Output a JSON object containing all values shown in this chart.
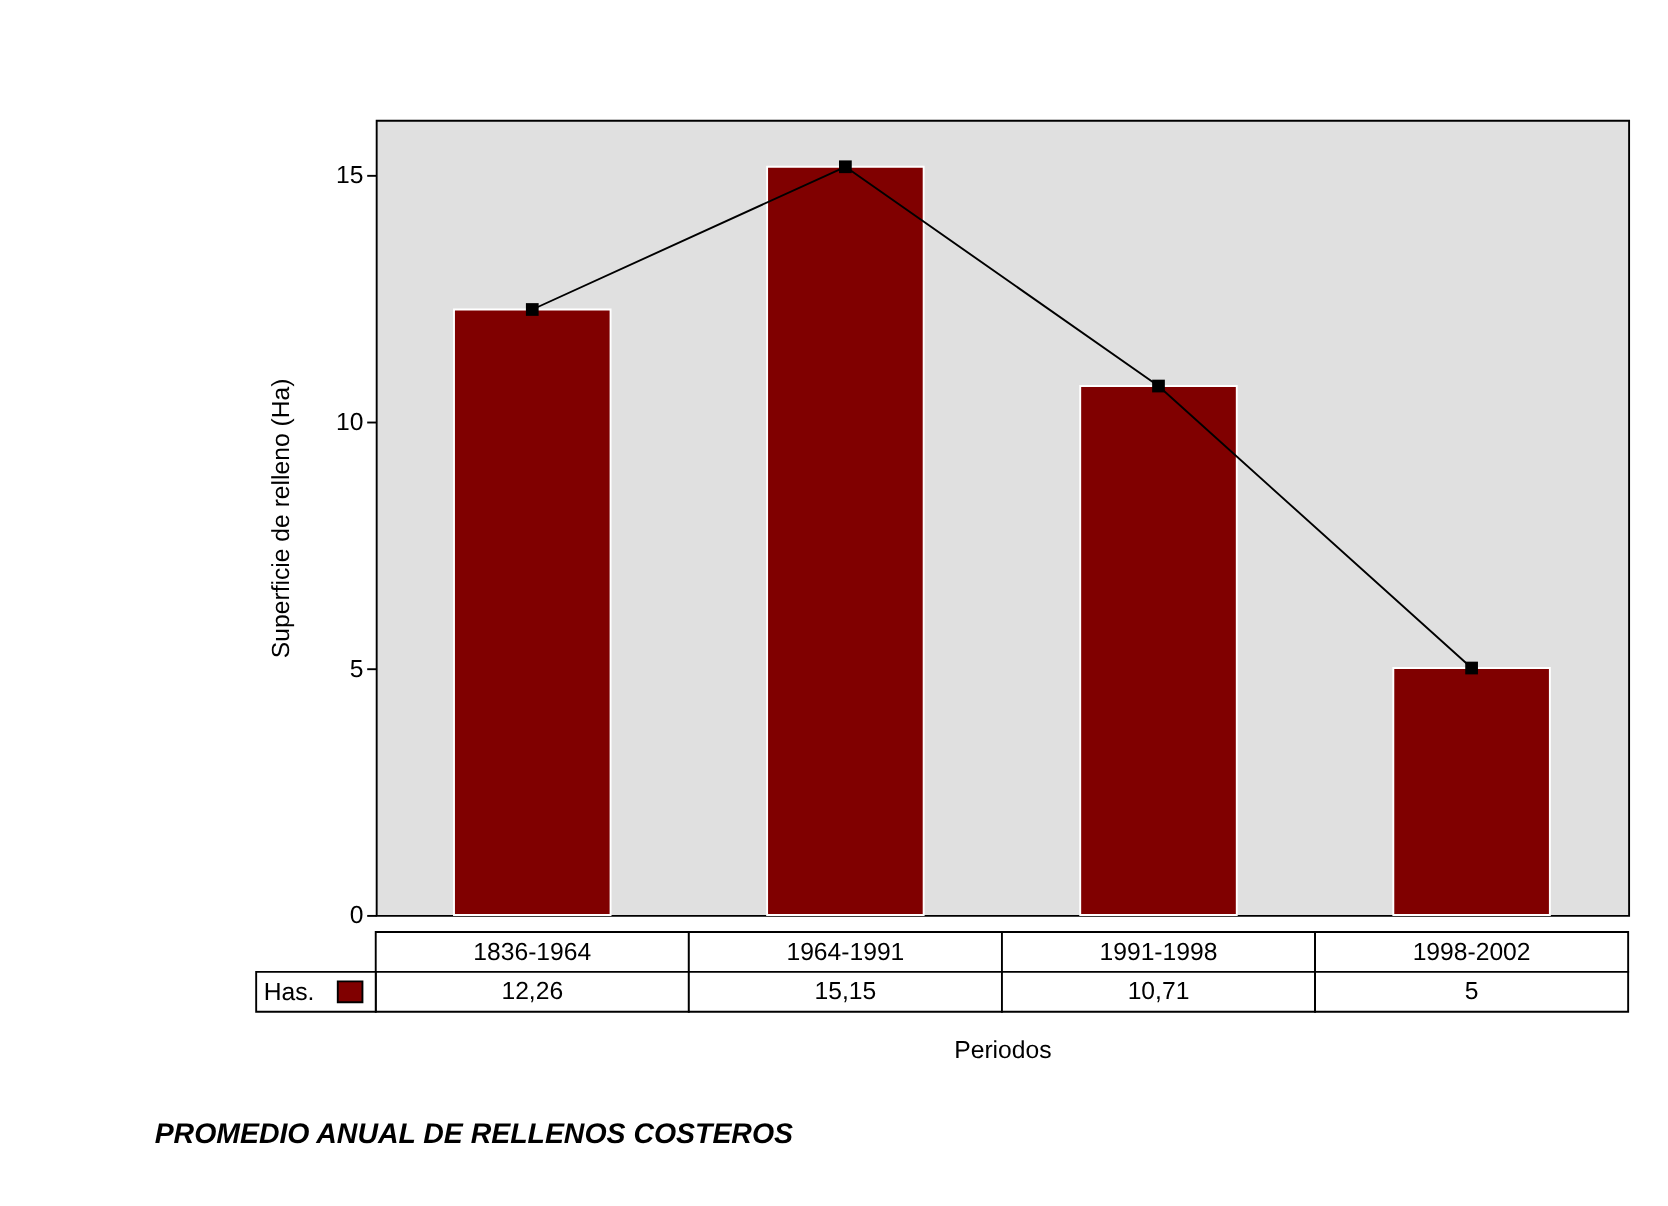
{
  "chart_data": {
    "type": "bar",
    "title": "PROMEDIO ANUAL DE RELLENOS COSTEROS",
    "xlabel": "Periodos",
    "ylabel": "Superficie de relleno (Ha)",
    "categories": [
      "1836-1964",
      "1964-1991",
      "1991-1998",
      "1998-2002"
    ],
    "series": [
      {
        "name": "Has.",
        "color": "#800000",
        "values": [
          12.26,
          15.15,
          10.71,
          5
        ],
        "value_labels": [
          "12,26",
          "15,15",
          "10,71",
          "5"
        ]
      },
      {
        "type": "line",
        "color": "#000000",
        "marker": "square",
        "values": [
          12.26,
          15.15,
          10.71,
          5
        ]
      }
    ],
    "ylim": [
      0,
      16.1
    ],
    "yticks": [
      0,
      5,
      10,
      15
    ],
    "grid": false,
    "legend": "bottom"
  }
}
